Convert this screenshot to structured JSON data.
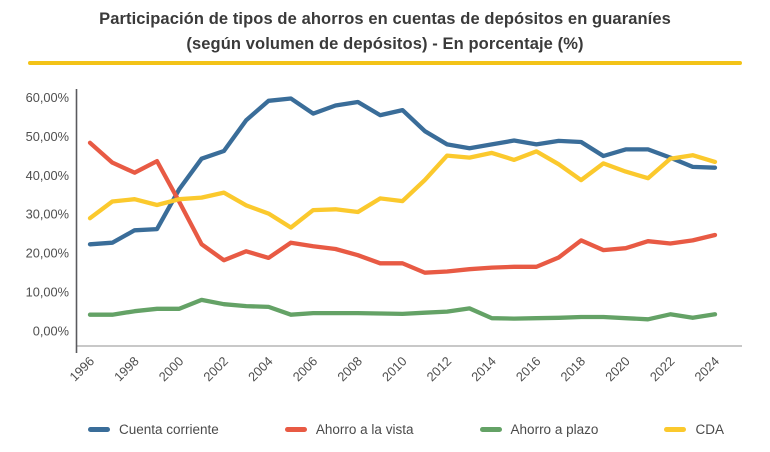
{
  "title": {
    "line1": "Participación de tipos de ahorros en cuentas de depósitos en guaraníes",
    "line2": "(según volumen de depósitos) - En porcentaje (%)"
  },
  "colors": {
    "divider": "#f3c317",
    "title_text": "#3a3a3a",
    "axis_text": "#4f4f4f",
    "y_axis_line": "#5a5a5e",
    "x_base_line": "#b5b5b5",
    "legend_text": "#4a4a4a",
    "background": "#ffffff"
  },
  "chart_data": {
    "type": "line",
    "title": "Participación de tipos de ahorros en cuentas de depósitos en guaraníes (según volumen de depósitos) - En porcentaje (%)",
    "xlabel": "",
    "ylabel": "",
    "grid": false,
    "legend_position": "bottom",
    "ylim": [
      0,
      60
    ],
    "x": [
      1996,
      1997,
      1998,
      1999,
      2000,
      2001,
      2002,
      2003,
      2004,
      2005,
      2006,
      2007,
      2008,
      2009,
      2010,
      2011,
      2012,
      2013,
      2014,
      2015,
      2016,
      2017,
      2018,
      2019,
      2020,
      2021,
      2022,
      2023,
      2024
    ],
    "xtick_labels": [
      "1996",
      "1998",
      "2000",
      "2002",
      "2004",
      "2006",
      "2008",
      "2010",
      "2012",
      "2014",
      "2016",
      "2018",
      "2020",
      "2022",
      "2024"
    ],
    "ytick_values": [
      0,
      10,
      20,
      30,
      40,
      50,
      60
    ],
    "ytick_labels": [
      "0,00%",
      "10,00%",
      "20,00%",
      "30,00%",
      "40,00%",
      "50,00%",
      "60,00%"
    ],
    "series": [
      {
        "name": "Cuenta corriente",
        "color": "#3a6d99",
        "values": [
          22.3,
          22.7,
          25.9,
          26.2,
          36.5,
          44.3,
          46.3,
          54.2,
          59.2,
          59.8,
          55.9,
          58.0,
          58.9,
          55.5,
          56.8,
          51.4,
          48.0,
          47.0,
          48.0,
          49.0,
          48.0,
          48.9,
          48.6,
          45.0,
          46.7,
          46.7,
          44.6,
          42.2,
          42.0
        ]
      },
      {
        "name": "Ahorro a la vista",
        "color": "#e85a44",
        "values": [
          48.4,
          43.3,
          40.7,
          43.7,
          33.2,
          22.3,
          18.2,
          20.5,
          18.8,
          22.7,
          21.8,
          21.1,
          19.5,
          17.4,
          17.4,
          15.0,
          15.3,
          15.9,
          16.3,
          16.5,
          16.5,
          18.9,
          23.3,
          20.8,
          21.3,
          23.1,
          22.5,
          23.3,
          24.7
        ]
      },
      {
        "name": "Ahorro a plazo",
        "color": "#64a266",
        "values": [
          4.2,
          4.2,
          5.1,
          5.7,
          5.7,
          8.0,
          6.9,
          6.4,
          6.2,
          4.2,
          4.6,
          4.6,
          4.6,
          4.5,
          4.4,
          4.7,
          5.0,
          5.8,
          3.3,
          3.2,
          3.3,
          3.4,
          3.6,
          3.6,
          3.3,
          3.0,
          4.3,
          3.4,
          4.3
        ]
      },
      {
        "name": "CDA",
        "color": "#fbc92d",
        "values": [
          29.0,
          33.3,
          33.9,
          32.4,
          33.9,
          34.3,
          35.6,
          32.3,
          30.2,
          26.6,
          31.1,
          31.3,
          30.6,
          34.1,
          33.4,
          38.8,
          45.1,
          44.6,
          45.8,
          44.0,
          46.2,
          42.9,
          38.8,
          43.1,
          41.0,
          39.3,
          44.3,
          45.2,
          43.5
        ]
      }
    ]
  },
  "legend": {
    "items": [
      "Cuenta corriente",
      "Ahorro a la vista",
      "Ahorro a plazo",
      "CDA"
    ]
  }
}
